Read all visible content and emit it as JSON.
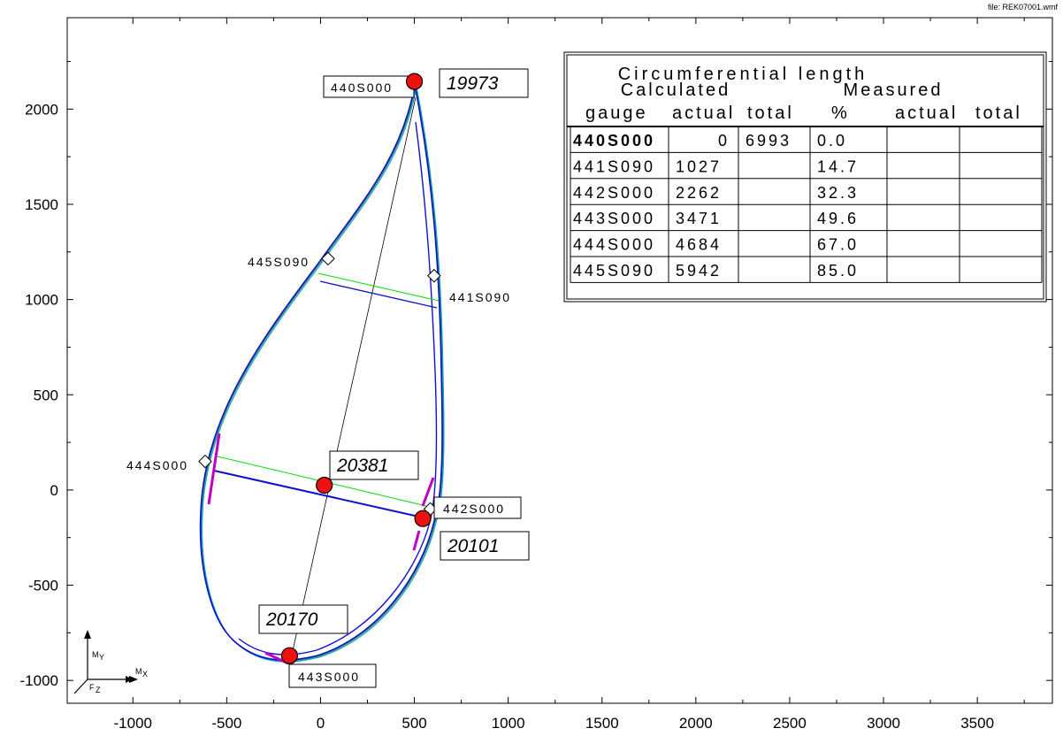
{
  "file_label": "file: REK07001.wmf",
  "chart_data": {
    "type": "scatter",
    "xlim": [
      -1350,
      3900
    ],
    "ylim": [
      -1120,
      2480
    ],
    "xticks": [
      -1000,
      -500,
      0,
      500,
      1000,
      1500,
      2000,
      2500,
      3000,
      3500
    ],
    "yticks": [
      -1000,
      -500,
      0,
      500,
      1000,
      1500,
      2000
    ],
    "xtick_labels": [
      "-1000",
      "-500",
      "0",
      "500",
      "1000",
      "1500",
      "2000",
      "2500",
      "3000",
      "3500"
    ],
    "ytick_labels": [
      "-1000",
      "-500",
      "0",
      "500",
      "1000",
      "1500",
      "2000"
    ],
    "gauges": [
      {
        "name": "440S000",
        "x": 490,
        "y": 2150,
        "label": "440S000"
      },
      {
        "name": "441S090",
        "x": 605,
        "y": 1125,
        "label": "441S090"
      },
      {
        "name": "442S000",
        "x": 585,
        "y": -100,
        "label": "442S000"
      },
      {
        "name": "443S000",
        "x": -150,
        "y": -880,
        "label": "443S000"
      },
      {
        "name": "444S000",
        "x": -615,
        "y": 150,
        "label": "444S000"
      },
      {
        "name": "445S090",
        "x": 40,
        "y": 1215,
        "label": "445S090"
      }
    ],
    "points": [
      {
        "label": "19973",
        "x": 500,
        "y": 2145
      },
      {
        "label": "20381",
        "x": 20,
        "y": 25
      },
      {
        "label": "20101",
        "x": 545,
        "y": -150
      },
      {
        "label": "20170",
        "x": -165,
        "y": -870
      }
    ],
    "axis_labels": {
      "my": "M",
      "my_sub": "Y",
      "mx": "M",
      "mx_sub": "X",
      "fz": "F",
      "fz_sub": "Z"
    }
  },
  "table": {
    "title": "Circumferential length",
    "group_calculated": "Calculated",
    "group_measured": "Measured",
    "headers": [
      "gauge",
      "actual",
      "total",
      "%",
      "actual",
      "total"
    ],
    "rows": [
      [
        "440S000",
        "0",
        "6993",
        "0.0",
        "",
        ""
      ],
      [
        "441S090",
        "1027",
        "",
        "14.7",
        "",
        ""
      ],
      [
        "442S000",
        "2262",
        "",
        "32.3",
        "",
        ""
      ],
      [
        "443S000",
        "3471",
        "",
        "49.6",
        "",
        ""
      ],
      [
        "444S000",
        "4684",
        "",
        "67.0",
        "",
        ""
      ],
      [
        "445S090",
        "5942",
        "",
        "85.0",
        "",
        ""
      ]
    ]
  }
}
